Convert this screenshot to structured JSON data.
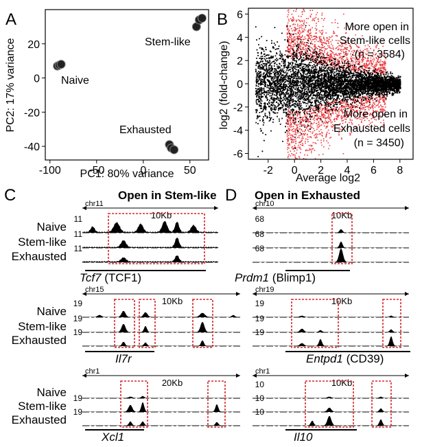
{
  "figure": {
    "colors": {
      "black": "#000000",
      "red": "#e8262a",
      "box": "#d9242a"
    },
    "panelA": {
      "letter": "A",
      "xlabel": "PC1: 80% variance",
      "ylabel": "PC2: 17% variance"
    },
    "panelB": {
      "letter": "B",
      "xlabel": "Average log2",
      "ylabel": "log2 (fold-change)",
      "up_line1": "More open in",
      "up_line2": "Stem-like cells",
      "up_line3": "(n = 3584)",
      "down_line1": "More open in",
      "down_line2": "Exhausted cells",
      "down_line3": "(n = 3450)"
    },
    "panelC": {
      "letter": "C",
      "title": "Open in Stem-like"
    },
    "panelD": {
      "letter": "D",
      "title": "Open in Exhausted"
    },
    "track_names": [
      "Naive",
      "Stem-like",
      "Exhausted"
    ]
  },
  "chart_data": [
    {
      "id": "pca",
      "type": "scatter",
      "title": "",
      "xlabel": "PC1: 80% variance",
      "ylabel": "PC2: 17% variance",
      "xlim": [
        -105,
        70
      ],
      "ylim": [
        -48,
        40
      ],
      "xticks": [
        -100,
        -50,
        0,
        50
      ],
      "yticks": [
        20,
        0,
        -20,
        -40
      ],
      "groups": [
        {
          "name": "Naive",
          "points": [
            [
              -92,
              7
            ],
            [
              -90,
              7.5
            ],
            [
              -88,
              8
            ]
          ]
        },
        {
          "name": "Stem-like",
          "points": [
            [
              57,
              30
            ],
            [
              60,
              34
            ],
            [
              63,
              35
            ]
          ]
        },
        {
          "name": "Exhausted",
          "points": [
            [
              28,
              -39
            ],
            [
              30,
              -41
            ],
            [
              33,
              -42
            ]
          ]
        }
      ]
    },
    {
      "id": "ma",
      "type": "scatter",
      "title": "",
      "xlabel": "Average log2",
      "ylabel": "log2 (fold-change)",
      "xlim": [
        -3.5,
        9
      ],
      "ylim": [
        -6.5,
        6.5
      ],
      "xticks": [
        -2,
        0,
        2,
        4,
        6,
        8
      ],
      "yticks": [
        6,
        4,
        2,
        0,
        -2,
        -4,
        -6
      ],
      "series": [
        {
          "name": "More open in Stem-like cells",
          "n": 3584
        },
        {
          "name": "More open in Exhausted cells",
          "n": 3450
        }
      ]
    },
    {
      "id": "tracks",
      "type": "area",
      "panels": [
        {
          "panel": "C",
          "row": 1,
          "chr": "chr11",
          "scale": "10Kb",
          "ymax": [
            "11",
            "11",
            "11"
          ],
          "gene_ital": "Tcf7",
          "gene_rest": " (TCF1)"
        },
        {
          "panel": "C",
          "row": 2,
          "chr": "chr15",
          "scale": "10Kb",
          "ymax": [
            "19",
            "19",
            "19"
          ],
          "gene_ital": "Il7r",
          "gene_rest": ""
        },
        {
          "panel": "C",
          "row": 3,
          "chr": "chr1",
          "scale": "20Kb",
          "ymax": [
            "",
            "19",
            "19"
          ],
          "gene_ital": "Xcl1",
          "gene_rest": ""
        },
        {
          "panel": "D",
          "row": 1,
          "chr": "chr10",
          "scale": "10Kb",
          "ymax": [
            "68",
            "68",
            "68"
          ],
          "gene_ital": "Prdm1",
          "gene_rest": " (Blimp1)"
        },
        {
          "panel": "D",
          "row": 2,
          "chr": "chr19",
          "scale": "10Kb",
          "ymax": [
            "19",
            "19",
            "19"
          ],
          "gene_ital": "Entpd1",
          "gene_rest": " (CD39)"
        },
        {
          "panel": "D",
          "row": 3,
          "chr": "chr1",
          "scale": "10Kb",
          "ymax": [
            "10",
            "10",
            "10"
          ],
          "gene_ital": "Il10",
          "gene_rest": ""
        }
      ]
    }
  ]
}
